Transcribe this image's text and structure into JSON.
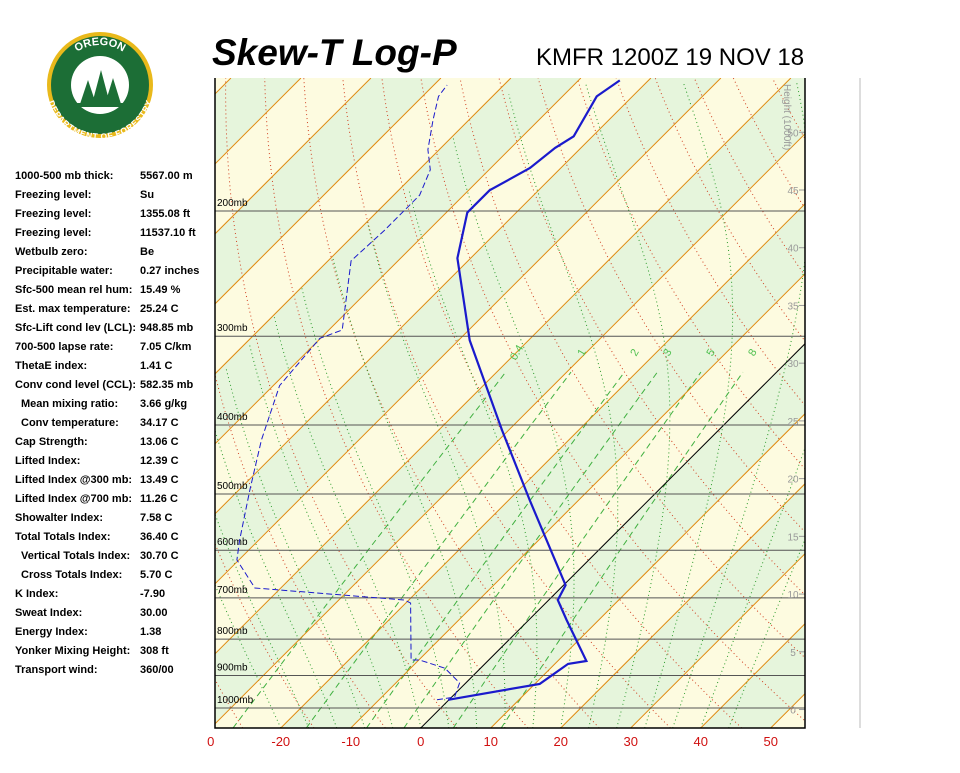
{
  "logo": {
    "top": "OREGON",
    "bottom": "DEPARTMENT OF FORESTRY"
  },
  "indices": [
    {
      "label": "1000-500 mb thick:",
      "value": "5567.00 m"
    },
    {
      "label": "Freezing level:",
      "value": "Su"
    },
    {
      "label": "Freezing level:",
      "value": "1355.08 ft"
    },
    {
      "label": "Freezing level:",
      "value": "11537.10 ft"
    },
    {
      "label": "Wetbulb zero:",
      "value": "Be"
    },
    {
      "label": "Precipitable water:",
      "value": "0.27 inches"
    },
    {
      "label": "Sfc-500 mean rel hum:",
      "value": "15.49 %"
    },
    {
      "label": "Est. max temperature:",
      "value": "25.24 C"
    },
    {
      "label": "Sfc-Lift cond lev (LCL):",
      "value": "948.85 mb"
    },
    {
      "label": "700-500 lapse rate:",
      "value": "7.05 C/km"
    },
    {
      "label": "ThetaE index:",
      "value": "1.41 C"
    },
    {
      "label": "Conv cond level (CCL):",
      "value": "582.35 mb"
    },
    {
      "label": "Mean mixing ratio:",
      "value": "3.66 g/kg"
    },
    {
      "label": "Conv temperature:",
      "value": "34.17 C"
    },
    {
      "label": "Cap Strength:",
      "value": "13.06 C"
    },
    {
      "label": "Lifted Index:",
      "value": "12.39 C"
    },
    {
      "label": "Lifted Index @300 mb:",
      "value": "13.49 C"
    },
    {
      "label": "Lifted Index @700 mb:",
      "value": "11.26 C"
    },
    {
      "label": "Showalter Index:",
      "value": "7.58 C"
    },
    {
      "label": "Total Totals Index:",
      "value": "36.40 C"
    },
    {
      "label": "Vertical Totals Index:",
      "value": "30.70 C"
    },
    {
      "label": "Cross Totals Index:",
      "value": "5.70 C"
    },
    {
      "label": "K Index:",
      "value": "-7.90"
    },
    {
      "label": "Sweat Index:",
      "value": "30.00"
    },
    {
      "label": "Energy Index:",
      "value": "1.38"
    },
    {
      "label": "Yonker Mixing Height:",
      "value": "308 ft"
    },
    {
      "label": "Transport wind:",
      "value": "360/00"
    }
  ],
  "chart_data": {
    "type": "skewt",
    "title": "Skew-T Log-P",
    "subtitle": "KMFR 1200Z 19 NOV 18",
    "xlim": [
      -29.4,
      54.9
    ],
    "xticks": [
      {
        "value": -30,
        "label": "0"
      },
      -20,
      -10,
      0,
      10,
      20,
      30,
      40,
      50
    ],
    "ylim": [
      1067,
      130
    ],
    "log_y": true,
    "yticks": [
      {
        "value": 1000,
        "label": "1000mb"
      },
      {
        "value": 900,
        "label": "900mb"
      },
      {
        "value": 800,
        "label": "800mb"
      },
      {
        "value": 700,
        "label": "700mb"
      },
      {
        "value": 600,
        "label": "600mb"
      },
      {
        "value": 500,
        "label": "500mb"
      },
      {
        "value": 400,
        "label": "400mb"
      },
      {
        "value": 300,
        "label": "300mb"
      },
      {
        "value": 200,
        "label": "200mb"
      }
    ],
    "y2label": "Height (1000ft)",
    "y2lim": [
      -1.6,
      54.7
    ],
    "y2ticks": [
      0,
      5,
      10,
      15,
      20,
      25,
      30,
      35,
      40,
      45,
      50
    ],
    "mixing_ratios": [
      0.4,
      1,
      2,
      3,
      5,
      8
    ],
    "series": [
      {
        "color": "#1a1acc",
        "pressure": [
          974,
          925,
          867,
          859,
          752,
          705,
          672,
          510,
          407,
          304,
          233,
          201,
          187,
          174,
          163,
          157,
          138,
          131
        ],
        "values": [
          -0.1,
          10.7,
          11.9,
          14.1,
          5.4,
          1.3,
          0.3,
          -17.0,
          -30.9,
          -48.4,
          -61.9,
          -67.0,
          -67.0,
          -64.4,
          -63.7,
          -62.7,
          -65.1,
          -64.1
        ]
      },
      {
        "color": "#1a1acc",
        "dashed": true,
        "pressure": [
          974,
          965,
          922,
          879,
          856,
          856,
          712,
          705,
          678,
          619,
          581,
          494,
          420,
          352,
          302,
          294,
          235,
          213,
          190,
          175,
          164,
          149,
          138,
          133
        ],
        "values": [
          -1.7,
          0.4,
          -0.9,
          -5.1,
          -9.9,
          -11.1,
          -19.3,
          -20.6,
          -43.7,
          -50.3,
          -52.7,
          -58.4,
          -63.9,
          -69.1,
          -70.1,
          -68.1,
          -76.7,
          -76.3,
          -76.3,
          -78.4,
          -81.6,
          -85.1,
          -87.7,
          -88.1
        ]
      }
    ]
  }
}
